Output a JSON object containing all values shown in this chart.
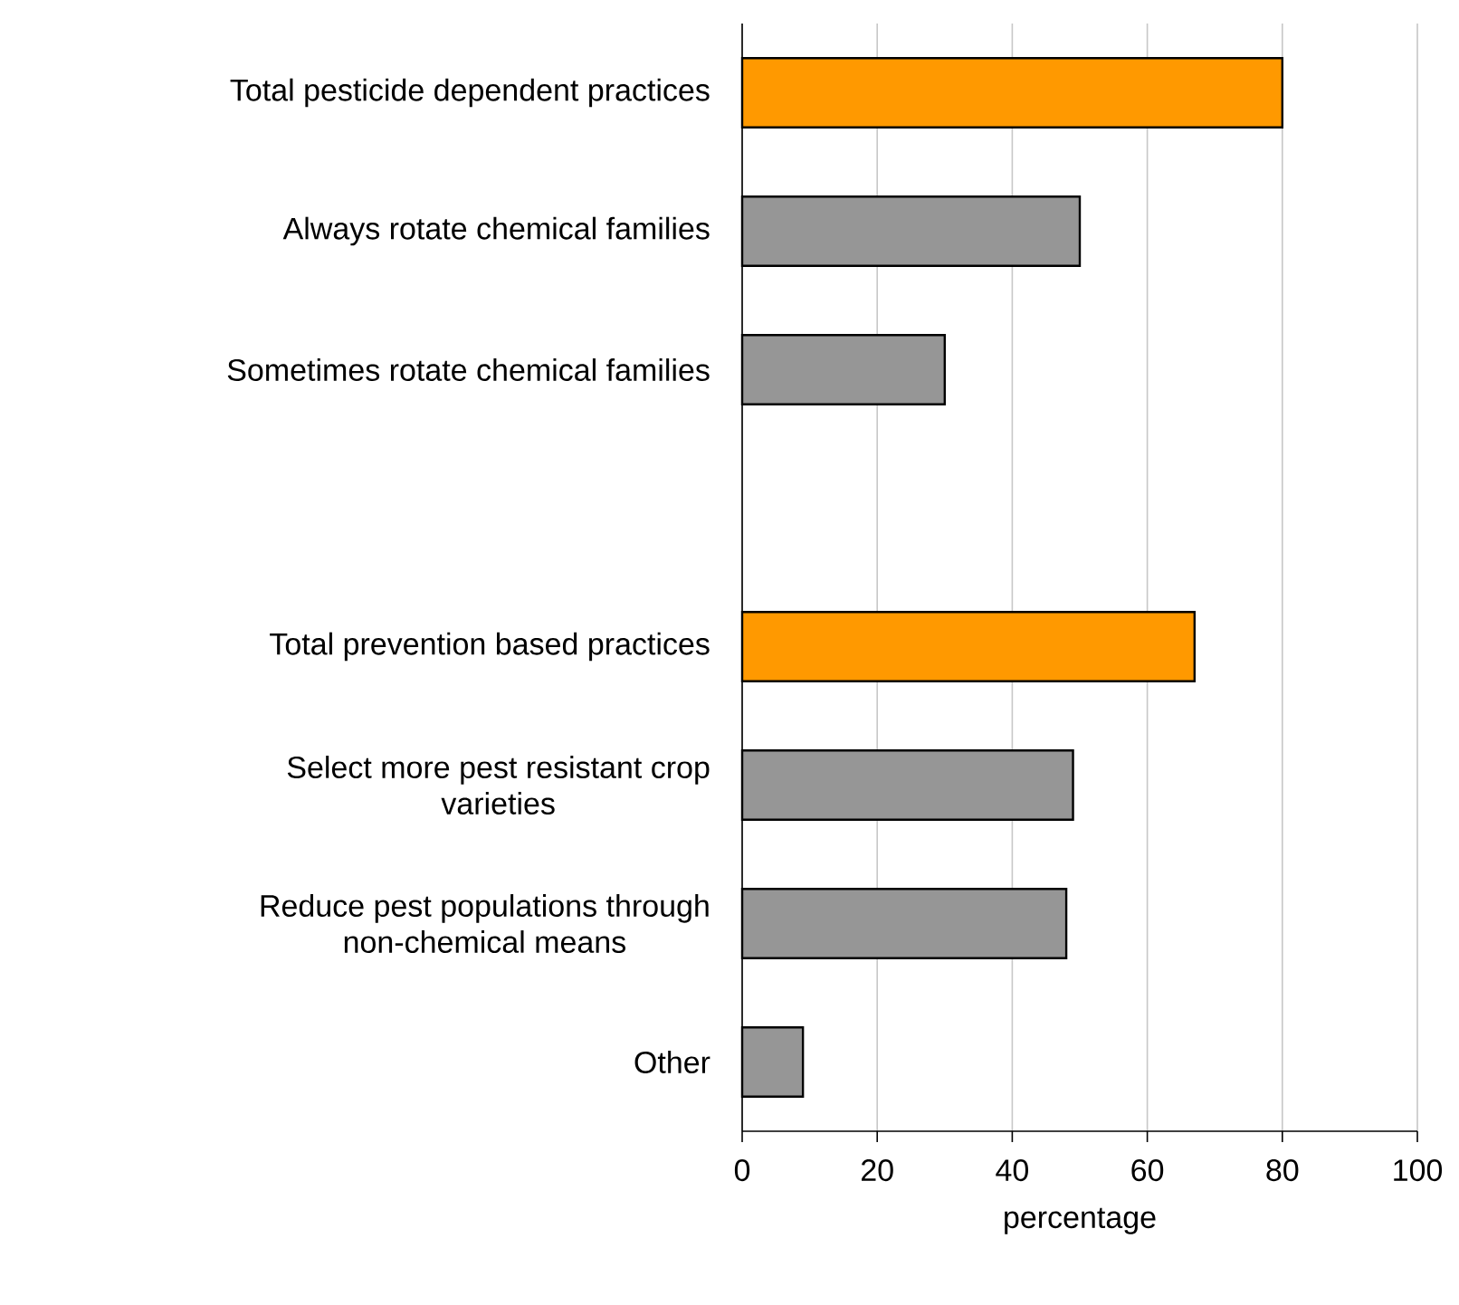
{
  "chart_data": {
    "type": "bar",
    "orientation": "horizontal",
    "categories": [
      "Total pesticide dependent practices",
      "Always rotate chemical families",
      "Sometimes rotate chemical families",
      null,
      "Total prevention based practices",
      "Select more pest resistant crop varieties",
      "Reduce pest populations through non-chemical means",
      "Other"
    ],
    "values": [
      80,
      50,
      30,
      null,
      67,
      49,
      48,
      9
    ],
    "colors": [
      "#ff9900",
      "#969696",
      "#969696",
      null,
      "#ff9900",
      "#969696",
      "#969696",
      "#969696"
    ],
    "xlabel": "percentage",
    "xlim": [
      0,
      100
    ],
    "xticks": [
      0,
      20,
      40,
      60,
      80,
      100
    ],
    "grid": "x"
  }
}
